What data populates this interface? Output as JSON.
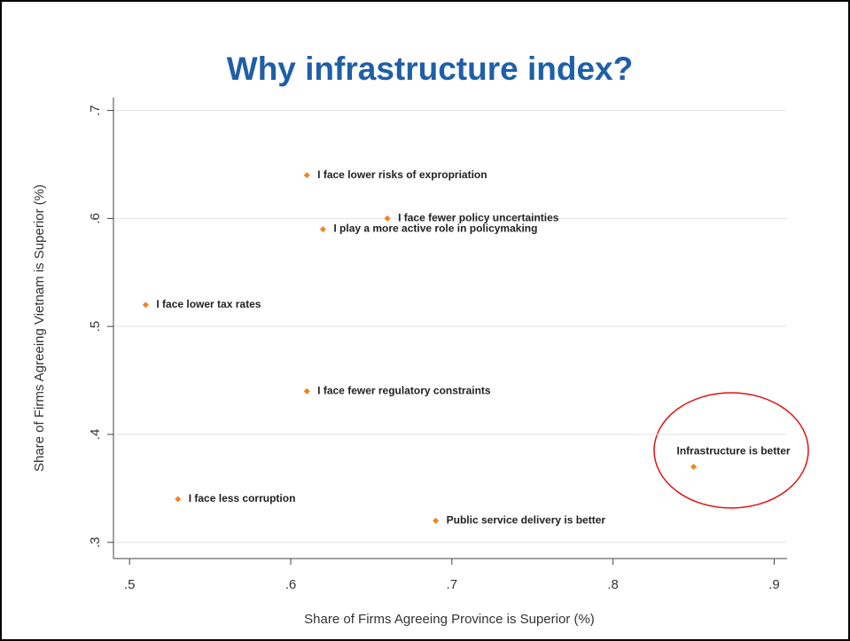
{
  "chart_data": {
    "type": "scatter",
    "title": "Why infrastructure index?",
    "xlabel": "Share of Firms Agreeing Province is Superior (%)",
    "ylabel": "Share of Firms Agreeing Vietnam is Superior (%)",
    "x": [
      0.61,
      0.66,
      0.62,
      0.51,
      0.61,
      0.85,
      0.53,
      0.69
    ],
    "values": [
      0.64,
      0.6,
      0.59,
      0.52,
      0.44,
      0.37,
      0.34,
      0.32
    ],
    "point_labels": [
      "I face lower risks of expropriation",
      "I face fewer policy uncertainties",
      "I play a more active role in policymaking",
      "I face lower tax rates",
      "I face fewer regulatory constraints",
      "Infrastructure is better",
      "I face less corruption",
      "Public service delivery is better"
    ],
    "color": "#f5821f",
    "xlim": [
      0.49,
      0.908
    ],
    "ylim": [
      0.285,
      0.712
    ],
    "xticks": [
      {
        "value": 0.5,
        "label": ".5"
      },
      {
        "value": 0.6,
        "label": ".6"
      },
      {
        "value": 0.7,
        "label": ".7"
      },
      {
        "value": 0.8,
        "label": ".8"
      },
      {
        "value": 0.9,
        "label": ".9"
      }
    ],
    "yticks": [
      {
        "value": 0.3,
        "label": ".3"
      },
      {
        "value": 0.4,
        "label": ".4"
      },
      {
        "value": 0.5,
        "label": ".5"
      },
      {
        "value": 0.6,
        "label": ".6"
      },
      {
        "value": 0.7,
        "label": ".7"
      }
    ],
    "grid": true
  }
}
